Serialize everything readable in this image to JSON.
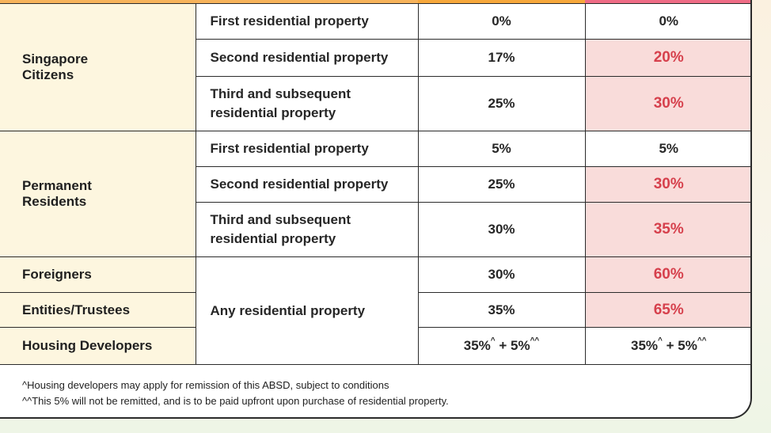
{
  "rows": {
    "sc": {
      "group": "Singapore Citizens",
      "r1": {
        "desc": "First residential property",
        "old": "0%",
        "new": "0%"
      },
      "r2": {
        "desc": "Second residential property",
        "old": "17%",
        "new": "20%"
      },
      "r3": {
        "desc": "Third and subsequent residential property",
        "old": "25%",
        "new": "30%"
      }
    },
    "pr": {
      "group": "Permanent Residents",
      "r1": {
        "desc": "First residential property",
        "old": "5%",
        "new": "5%"
      },
      "r2": {
        "desc": "Second residential property",
        "old": "25%",
        "new": "30%"
      },
      "r3": {
        "desc": "Third and subsequent residential property",
        "old": "30%",
        "new": "35%"
      }
    },
    "foreigners": {
      "group": "Foreigners",
      "old": "30%",
      "new": "60%"
    },
    "entities": {
      "group": "Entities/Trustees",
      "old": "35%",
      "new": "65%"
    },
    "developers": {
      "group": "Housing Developers",
      "old_base": "35%",
      "old_mark1": "^",
      "old_plus": " + 5%",
      "old_mark2": "^^",
      "new_base": "35%",
      "new_mark1": "^",
      "new_plus": " + 5%",
      "new_mark2": "^^"
    },
    "any_desc": "Any residential property"
  },
  "notes": {
    "n1": "^Housing developers may apply for remission of this ABSD, subject to conditions",
    "n2": "^^This 5% will not be remitted, and is to be paid upfront upon purchase of residential property."
  },
  "colors": {
    "highlight_bg": "#f9dcda",
    "highlight_text": "#d6404c",
    "label_bg": "#fdf6df"
  }
}
